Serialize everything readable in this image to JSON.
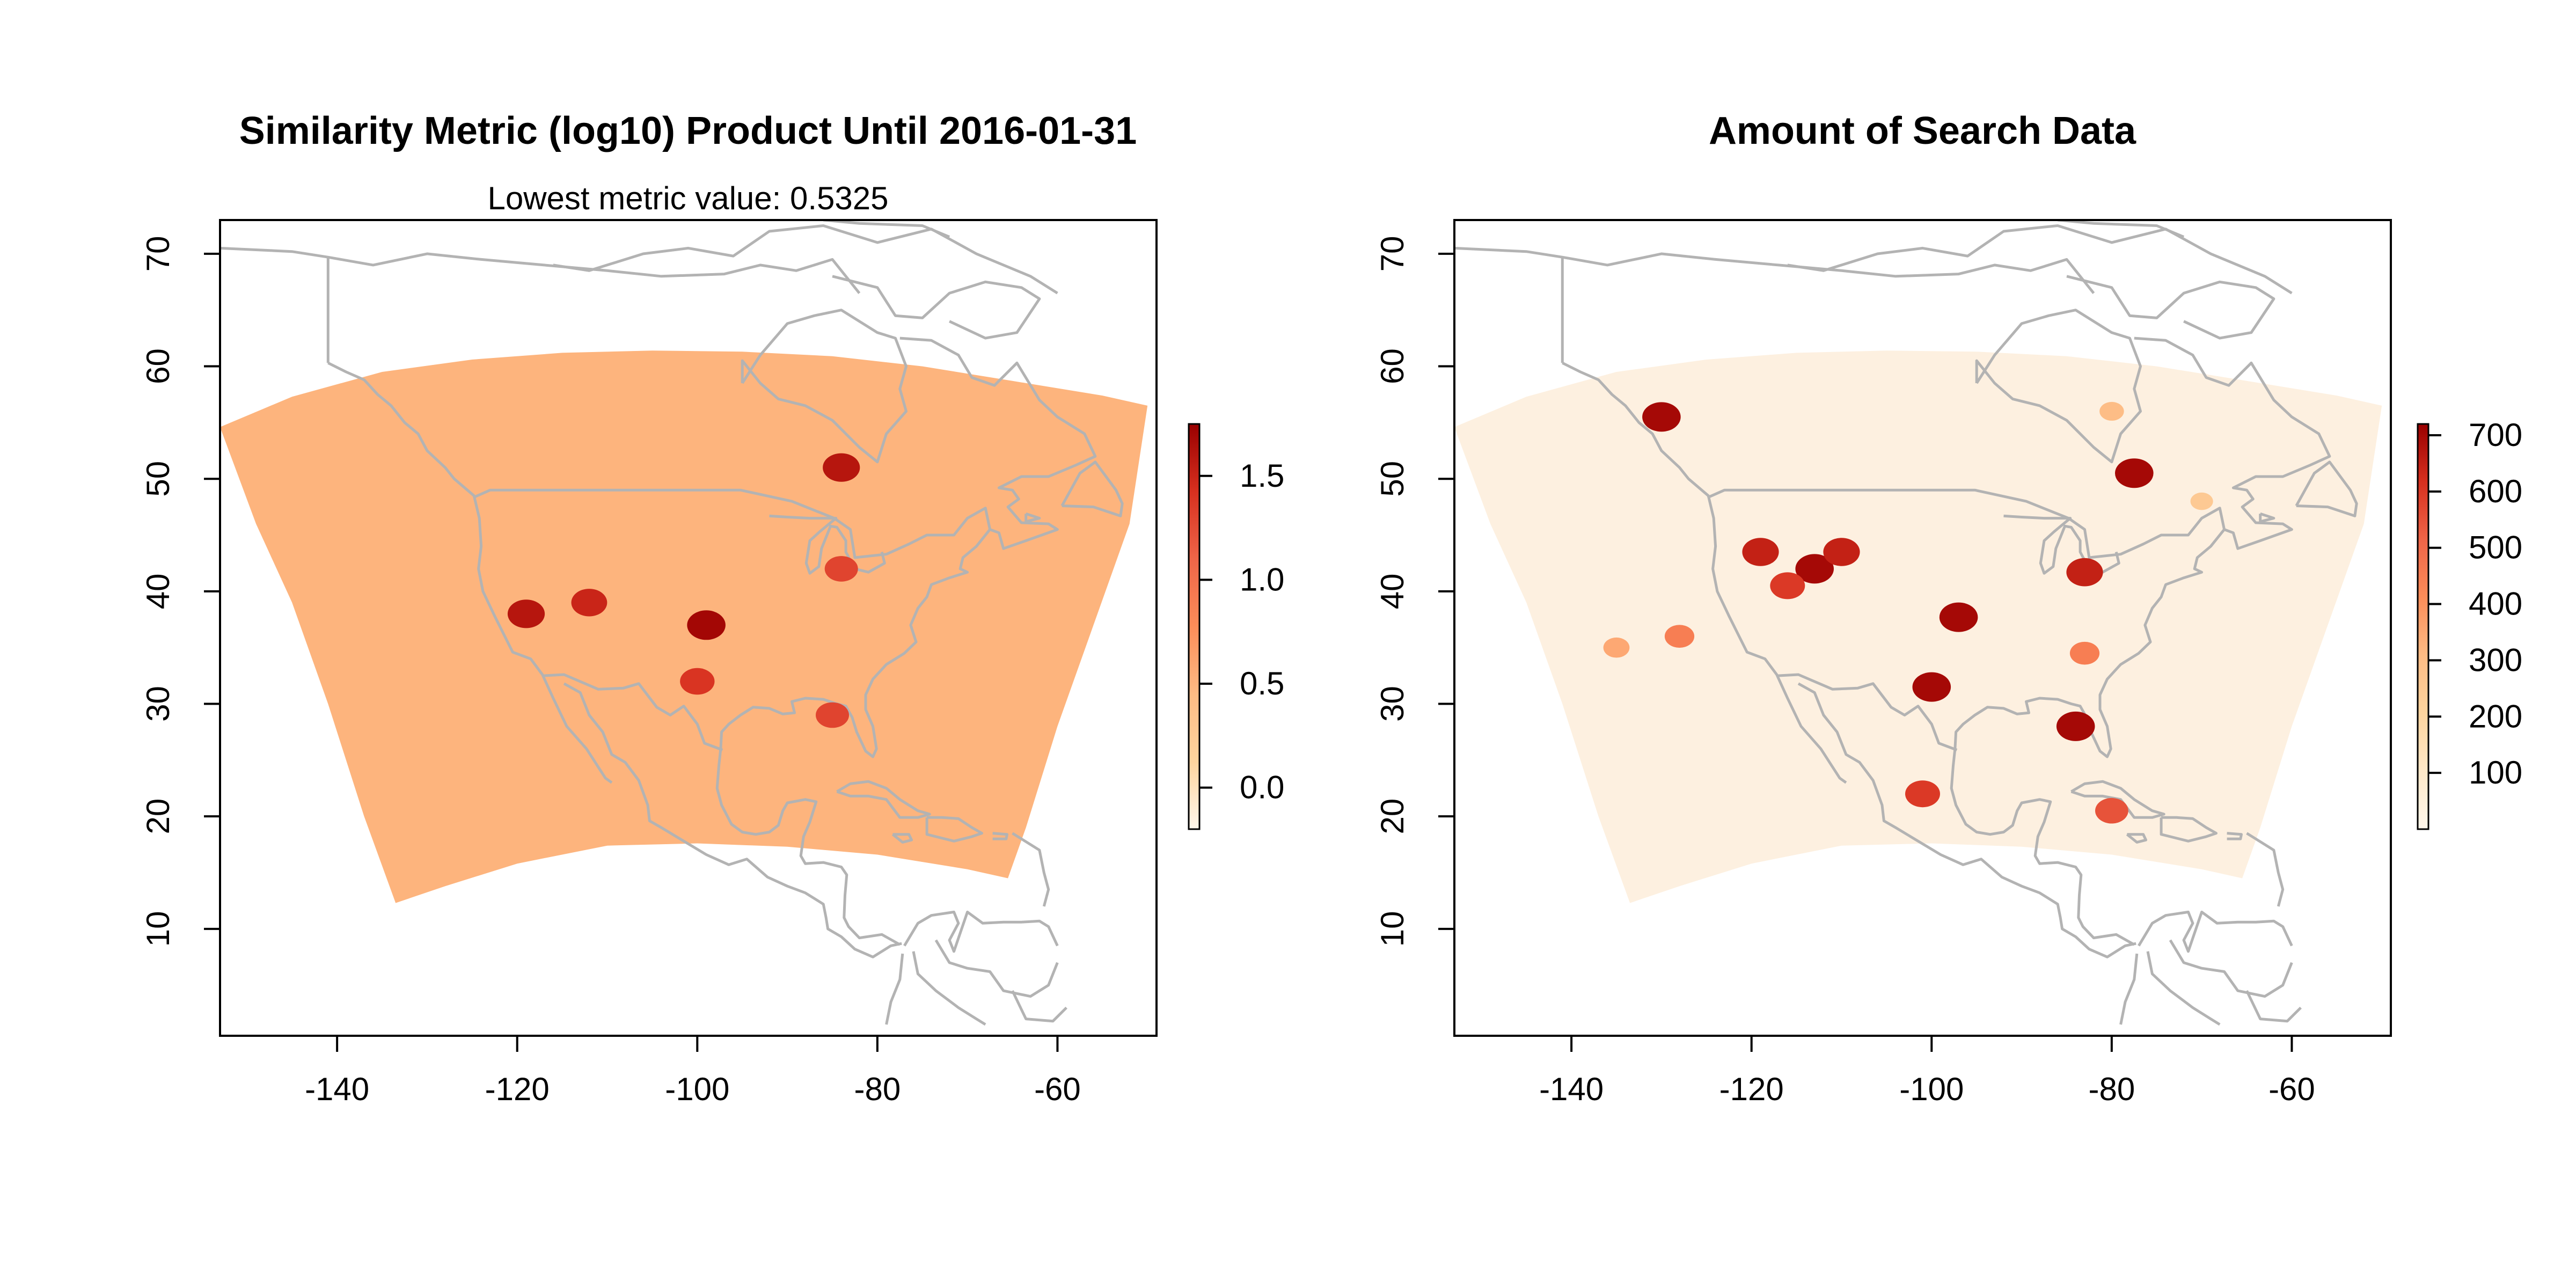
{
  "chart_data": [
    {
      "type": "heatmap",
      "title": "Similarity Metric (log10) Product Until 2016-01-31",
      "subtitle": "Lowest metric value: 0.5325",
      "xlabel": "",
      "ylabel": "",
      "xlim": [
        -153,
        -49
      ],
      "ylim": [
        0.5,
        73
      ],
      "xticks": [
        -140,
        -120,
        -100,
        -80,
        -60
      ],
      "yticks": [
        10,
        20,
        30,
        40,
        50,
        60,
        70
      ],
      "legend": {
        "position": "right",
        "range": [
          -0.2,
          1.75
        ],
        "ticks": [
          0.0,
          0.5,
          1.0,
          1.5
        ],
        "tick_labels": [
          "0.0",
          "0.5",
          "1.0",
          "1.5"
        ],
        "colors": [
          "#fff7ec",
          "#fdd49e",
          "#fdbb84",
          "#fc8d59",
          "#ef6548",
          "#d7301f",
          "#990000"
        ]
      },
      "background_color": "#fdb47d",
      "hotspots": [
        {
          "lon": -119,
          "lat": 38,
          "value": 1.6
        },
        {
          "lon": -112,
          "lat": 39,
          "value": 1.5
        },
        {
          "lon": -99,
          "lat": 37,
          "value": 1.7
        },
        {
          "lon": -100,
          "lat": 32,
          "value": 1.4
        },
        {
          "lon": -84,
          "lat": 42,
          "value": 1.3
        },
        {
          "lon": -85,
          "lat": 29,
          "value": 1.3
        },
        {
          "lon": -84,
          "lat": 51,
          "value": 1.6
        }
      ]
    },
    {
      "type": "heatmap",
      "title": "Amount of Search Data",
      "xlabel": "",
      "ylabel": "",
      "xlim": [
        -153,
        -49
      ],
      "ylim": [
        0.5,
        73
      ],
      "xticks": [
        -140,
        -120,
        -100,
        -80,
        -60
      ],
      "yticks": [
        10,
        20,
        30,
        40,
        50,
        60,
        70
      ],
      "legend": {
        "position": "right",
        "range": [
          0,
          720
        ],
        "ticks": [
          100,
          200,
          300,
          400,
          500,
          600,
          700
        ],
        "tick_labels": [
          "100",
          "200",
          "300",
          "400",
          "500",
          "600",
          "700"
        ],
        "colors": [
          "#fff7ec",
          "#fee8c8",
          "#fdd49e",
          "#fdbb84",
          "#fc8d59",
          "#ef6548",
          "#d7301f",
          "#990000"
        ]
      },
      "background_color": "#fdf0e0",
      "hotspots": [
        {
          "lon": -130,
          "lat": 55.5,
          "value": 700
        },
        {
          "lon": -119,
          "lat": 43.5,
          "value": 650
        },
        {
          "lon": -113,
          "lat": 42,
          "value": 700
        },
        {
          "lon": -110,
          "lat": 43.5,
          "value": 650
        },
        {
          "lon": -116,
          "lat": 40.5,
          "value": 600
        },
        {
          "lon": -97,
          "lat": 37.7,
          "value": 700
        },
        {
          "lon": -100,
          "lat": 31.5,
          "value": 700
        },
        {
          "lon": -84,
          "lat": 28,
          "value": 700
        },
        {
          "lon": -77.5,
          "lat": 50.5,
          "value": 700
        },
        {
          "lon": -83,
          "lat": 41.7,
          "value": 650
        },
        {
          "lon": -101,
          "lat": 22,
          "value": 600
        },
        {
          "lon": -80,
          "lat": 20.5,
          "value": 550
        },
        {
          "lon": -83,
          "lat": 34.5,
          "value": 450
        },
        {
          "lon": -128,
          "lat": 36,
          "value": 450
        },
        {
          "lon": -135,
          "lat": 35,
          "value": 350
        },
        {
          "lon": -80,
          "lat": 56,
          "value": 300
        },
        {
          "lon": -70,
          "lat": 48,
          "value": 250
        }
      ]
    }
  ]
}
